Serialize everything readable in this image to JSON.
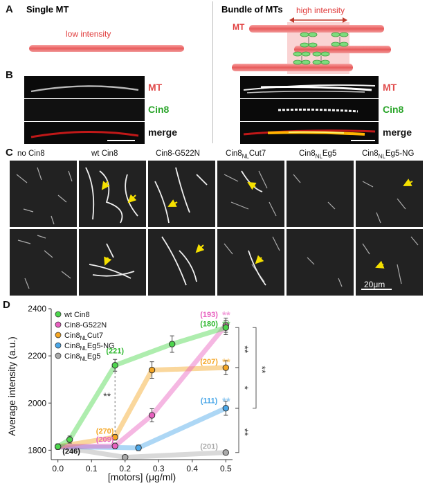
{
  "panels": {
    "a": "A",
    "b": "B",
    "c": "C",
    "d": "D"
  },
  "panel_a": {
    "left_title": "Single MT",
    "left_note": "low intensity",
    "right_title": "Bundle of MTs",
    "right_note": "high intensity",
    "mt_label": "MT",
    "cin8_label": "Cin8"
  },
  "panel_b": {
    "mt": "MT",
    "cin8": "Cin8",
    "merge": "merge"
  },
  "panel_c": {
    "columns": [
      {
        "base": "no Cin8",
        "sub": "",
        "tail": ""
      },
      {
        "base": "wt Cin8",
        "sub": "",
        "tail": ""
      },
      {
        "base": "Cin8-G522N",
        "sub": "",
        "tail": ""
      },
      {
        "base": "Cin8",
        "sub": "NL",
        "tail": "Cut7"
      },
      {
        "base": "Cin8",
        "sub": "NL",
        "tail": "Eg5"
      },
      {
        "base": "Cin8",
        "sub": "NL",
        "tail": "Eg5-NG"
      }
    ],
    "scale_bar": "20μm"
  },
  "chart_data": {
    "type": "line",
    "xlabel": "[motors] (μg/ml)",
    "ylabel": "Average intensity (a.u.)",
    "xlim": [
      -0.02,
      0.52
    ],
    "ylim": [
      1760,
      2400
    ],
    "xticks": [
      "0.0",
      "0.1",
      "0.2",
      "0.3",
      "0.4",
      "0.5"
    ],
    "yticks": [
      "1800",
      "2000",
      "2200",
      "2400"
    ],
    "legend_position": "top-left",
    "series": [
      {
        "name": "wt Cin8",
        "base": "wt Cin8",
        "sub": "",
        "tail": "",
        "color": "#4cd64c",
        "x": [
          0,
          0.035,
          0.17,
          0.34,
          0.5
        ],
        "y": [
          1815,
          1845,
          2160,
          2250,
          2320
        ],
        "err": [
          12,
          15,
          25,
          35,
          30
        ]
      },
      {
        "name": "Cin8-G522N",
        "base": "Cin8-G522N",
        "sub": "",
        "tail": "",
        "color": "#e85fbf",
        "x": [
          0,
          0.17,
          0.28,
          0.5
        ],
        "y": [
          1815,
          1818,
          1948,
          2330
        ],
        "err": [
          10,
          12,
          28,
          30
        ]
      },
      {
        "name": "Cin8NLCut7",
        "base": "Cin8",
        "sub": "NL",
        "tail": "Cut7",
        "color": "#f5a623",
        "x": [
          0,
          0.17,
          0.28,
          0.5
        ],
        "y": [
          1815,
          1855,
          2140,
          2150
        ],
        "err": [
          10,
          12,
          35,
          30
        ]
      },
      {
        "name": "Cin8NLEg5-NG",
        "base": "Cin8",
        "sub": "NL",
        "tail": "Eg5-NG",
        "color": "#4aa7e8",
        "x": [
          0,
          0.24,
          0.5
        ],
        "y": [
          1815,
          1810,
          1978
        ],
        "err": [
          10,
          12,
          30
        ]
      },
      {
        "name": "Cin8NLEg5",
        "base": "Cin8",
        "sub": "NL",
        "tail": "Eg5",
        "color": "#aaaaaa",
        "x": [
          0,
          0.2,
          0.5
        ],
        "y": [
          1815,
          1770,
          1790
        ],
        "err": [
          8,
          8,
          8
        ]
      }
    ],
    "annotations": [
      {
        "text": "(221)",
        "x": 0.17,
        "y": 2210,
        "color": "#2eb82e"
      },
      {
        "text": "(193)",
        "x": 0.45,
        "y": 2365,
        "color": "#e85fbf"
      },
      {
        "text": "(180)",
        "x": 0.45,
        "y": 2325,
        "color": "#2eb82e"
      },
      {
        "text": "(207)",
        "x": 0.45,
        "y": 2165,
        "color": "#f5a623"
      },
      {
        "text": "(111)",
        "x": 0.45,
        "y": 2000,
        "color": "#4aa7e8"
      },
      {
        "text": "(201)",
        "x": 0.45,
        "y": 1805,
        "color": "#aaaaaa"
      },
      {
        "text": "(270)",
        "x": 0.14,
        "y": 1870,
        "color": "#f5a623"
      },
      {
        "text": "(209)",
        "x": 0.14,
        "y": 1835,
        "color": "#e85fbf"
      },
      {
        "text": "(246)",
        "x": 0.04,
        "y": 1785,
        "color": "#111111"
      }
    ],
    "significance": {
      "mark": "**",
      "single": "*"
    }
  }
}
